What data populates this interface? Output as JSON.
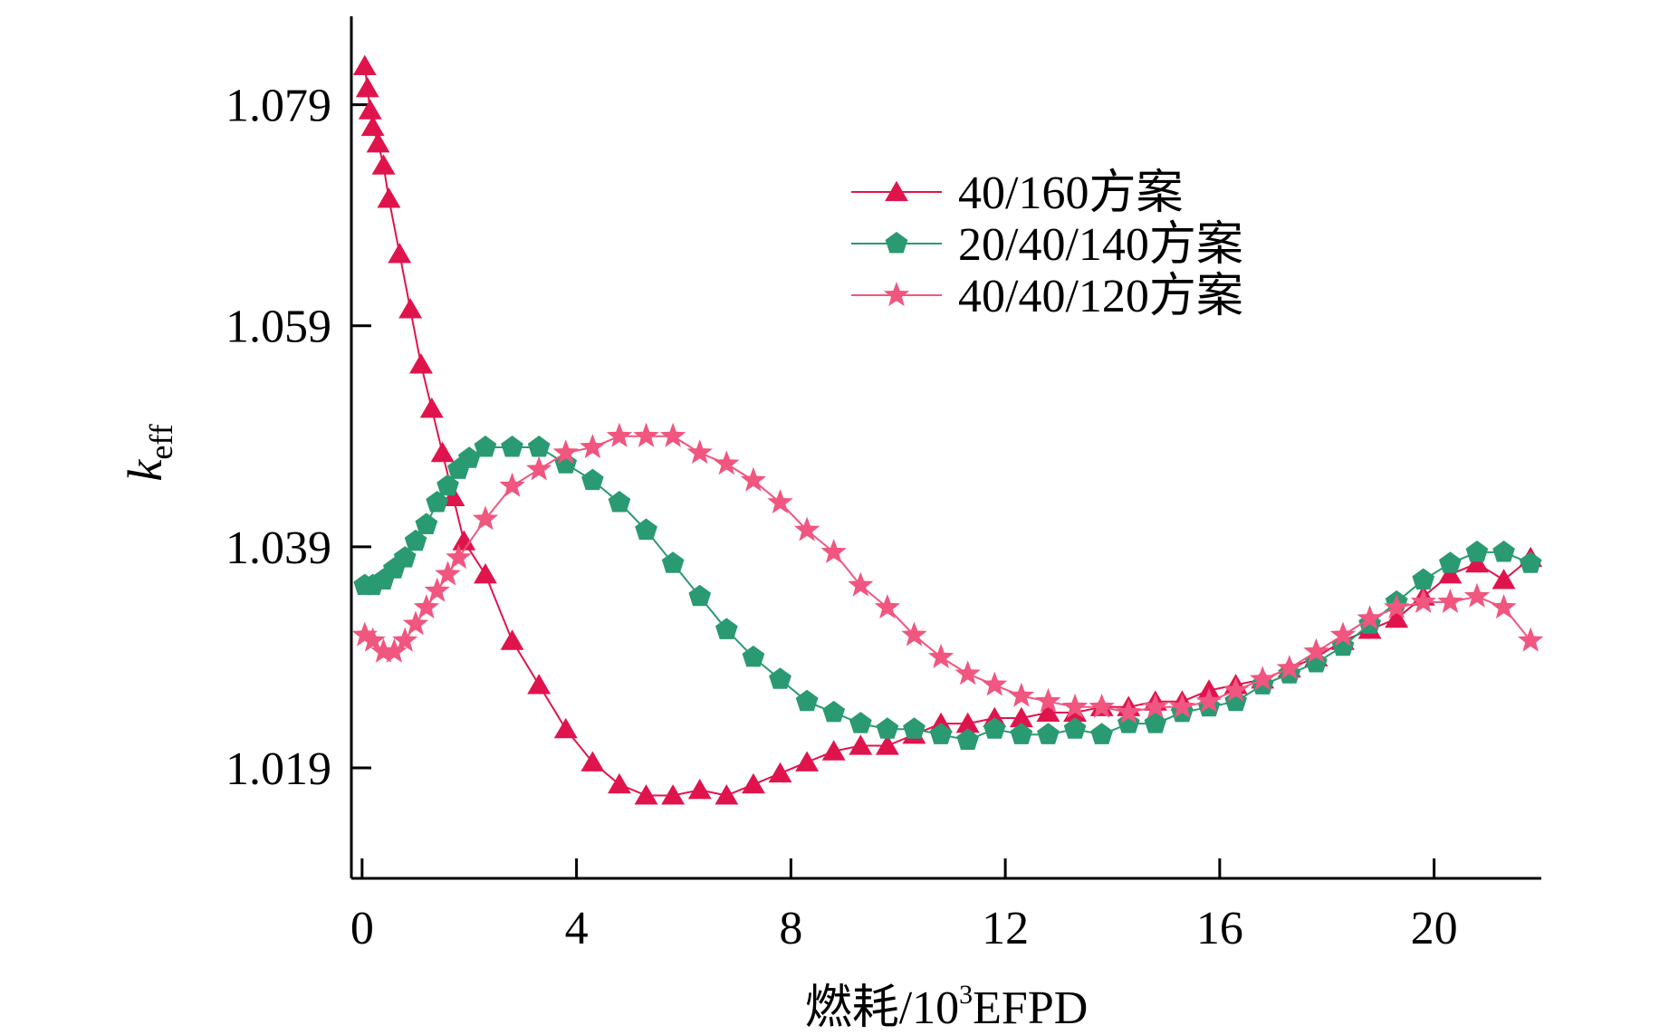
{
  "chart_data": {
    "type": "line",
    "title": "",
    "xlabel": "燃耗/10",
    "xlabel_sup": "3",
    "xlabel_unit": "EFPD",
    "ylabel": "k",
    "ylabel_sub": "eff",
    "xlim": [
      -0.2,
      22.0
    ],
    "ylim": [
      1.009,
      1.087
    ],
    "x_ticks": [
      0,
      4,
      8,
      12,
      16,
      20
    ],
    "x_tick_labels": [
      "0",
      "4",
      "8",
      "12",
      "16",
      "20"
    ],
    "y_ticks": [
      1.019,
      1.039,
      1.059,
      1.079
    ],
    "y_tick_labels": [
      "1.019",
      "1.039",
      "1.059",
      "1.079"
    ],
    "grid": false,
    "legend_position": "top-right",
    "series": [
      {
        "name": "40/160方案",
        "color": "#e0144c",
        "marker": "triangle",
        "x": [
          0.05,
          0.1,
          0.15,
          0.2,
          0.3,
          0.4,
          0.5,
          0.7,
          0.9,
          1.1,
          1.3,
          1.5,
          1.7,
          1.9,
          2.3,
          2.8,
          3.3,
          3.8,
          4.3,
          4.8,
          5.3,
          5.8,
          6.3,
          6.8,
          7.3,
          7.8,
          8.3,
          8.8,
          9.3,
          9.8,
          10.3,
          10.8,
          11.3,
          11.8,
          12.3,
          12.8,
          13.3,
          13.8,
          14.3,
          14.8,
          15.3,
          15.8,
          16.3,
          16.8,
          17.3,
          17.8,
          18.3,
          18.8,
          19.3,
          19.8,
          20.3,
          20.8,
          21.3,
          21.8
        ],
        "y": [
          1.0825,
          1.0805,
          1.0785,
          1.077,
          1.0755,
          1.0735,
          1.0705,
          1.0655,
          1.0605,
          1.0555,
          1.0515,
          1.0475,
          1.0435,
          1.0395,
          1.0365,
          1.0305,
          1.0265,
          1.0225,
          1.0195,
          1.0175,
          1.0165,
          1.0165,
          1.017,
          1.0165,
          1.0175,
          1.0185,
          1.0195,
          1.0205,
          1.021,
          1.021,
          1.022,
          1.023,
          1.023,
          1.0235,
          1.0235,
          1.024,
          1.024,
          1.0245,
          1.0245,
          1.025,
          1.025,
          1.026,
          1.0265,
          1.027,
          1.028,
          1.029,
          1.0305,
          1.0315,
          1.0325,
          1.0345,
          1.0365,
          1.0375,
          1.036,
          1.038
        ]
      },
      {
        "name": "20/40/140方案",
        "color": "#2a9a72",
        "marker": "pentagon",
        "x": [
          0.05,
          0.2,
          0.4,
          0.6,
          0.8,
          1.0,
          1.2,
          1.4,
          1.6,
          1.8,
          2.0,
          2.3,
          2.8,
          3.3,
          3.8,
          4.3,
          4.8,
          5.3,
          5.8,
          6.3,
          6.8,
          7.3,
          7.8,
          8.3,
          8.8,
          9.3,
          9.8,
          10.3,
          10.8,
          11.3,
          11.8,
          12.3,
          12.8,
          13.3,
          13.8,
          14.3,
          14.8,
          15.3,
          15.8,
          16.3,
          16.8,
          17.3,
          17.8,
          18.3,
          18.8,
          19.3,
          19.8,
          20.3,
          20.8,
          21.3,
          21.8
        ],
        "y": [
          1.0355,
          1.0355,
          1.036,
          1.037,
          1.038,
          1.0395,
          1.041,
          1.043,
          1.0445,
          1.046,
          1.047,
          1.048,
          1.048,
          1.048,
          1.0465,
          1.045,
          1.043,
          1.0405,
          1.0375,
          1.0345,
          1.0315,
          1.029,
          1.027,
          1.025,
          1.024,
          1.023,
          1.0225,
          1.0225,
          1.022,
          1.0215,
          1.0225,
          1.022,
          1.022,
          1.0225,
          1.022,
          1.023,
          1.023,
          1.024,
          1.0245,
          1.025,
          1.0265,
          1.0275,
          1.0285,
          1.03,
          1.032,
          1.034,
          1.036,
          1.0375,
          1.0385,
          1.0385,
          1.0375
        ]
      },
      {
        "name": "40/40/120方案",
        "color": "#f0567f",
        "marker": "star",
        "x": [
          0.05,
          0.2,
          0.4,
          0.6,
          0.8,
          1.0,
          1.2,
          1.4,
          1.6,
          1.8,
          2.3,
          2.8,
          3.3,
          3.8,
          4.3,
          4.8,
          5.3,
          5.8,
          6.3,
          6.8,
          7.3,
          7.8,
          8.3,
          8.8,
          9.3,
          9.8,
          10.3,
          10.8,
          11.3,
          11.8,
          12.3,
          12.8,
          13.3,
          13.8,
          14.3,
          14.8,
          15.3,
          15.8,
          16.3,
          16.8,
          17.3,
          17.8,
          18.3,
          18.8,
          19.3,
          19.8,
          20.3,
          20.8,
          21.3,
          21.8
        ],
        "y": [
          1.031,
          1.0305,
          1.0295,
          1.0295,
          1.0305,
          1.032,
          1.0335,
          1.035,
          1.0365,
          1.038,
          1.0415,
          1.0445,
          1.046,
          1.0475,
          1.048,
          1.049,
          1.049,
          1.049,
          1.0475,
          1.0465,
          1.045,
          1.043,
          1.0405,
          1.0385,
          1.0355,
          1.0335,
          1.031,
          1.029,
          1.0275,
          1.0265,
          1.0255,
          1.025,
          1.0245,
          1.0245,
          1.024,
          1.0245,
          1.0245,
          1.025,
          1.026,
          1.027,
          1.028,
          1.0295,
          1.031,
          1.0325,
          1.0335,
          1.034,
          1.034,
          1.0345,
          1.0335,
          1.0305
        ]
      }
    ]
  }
}
